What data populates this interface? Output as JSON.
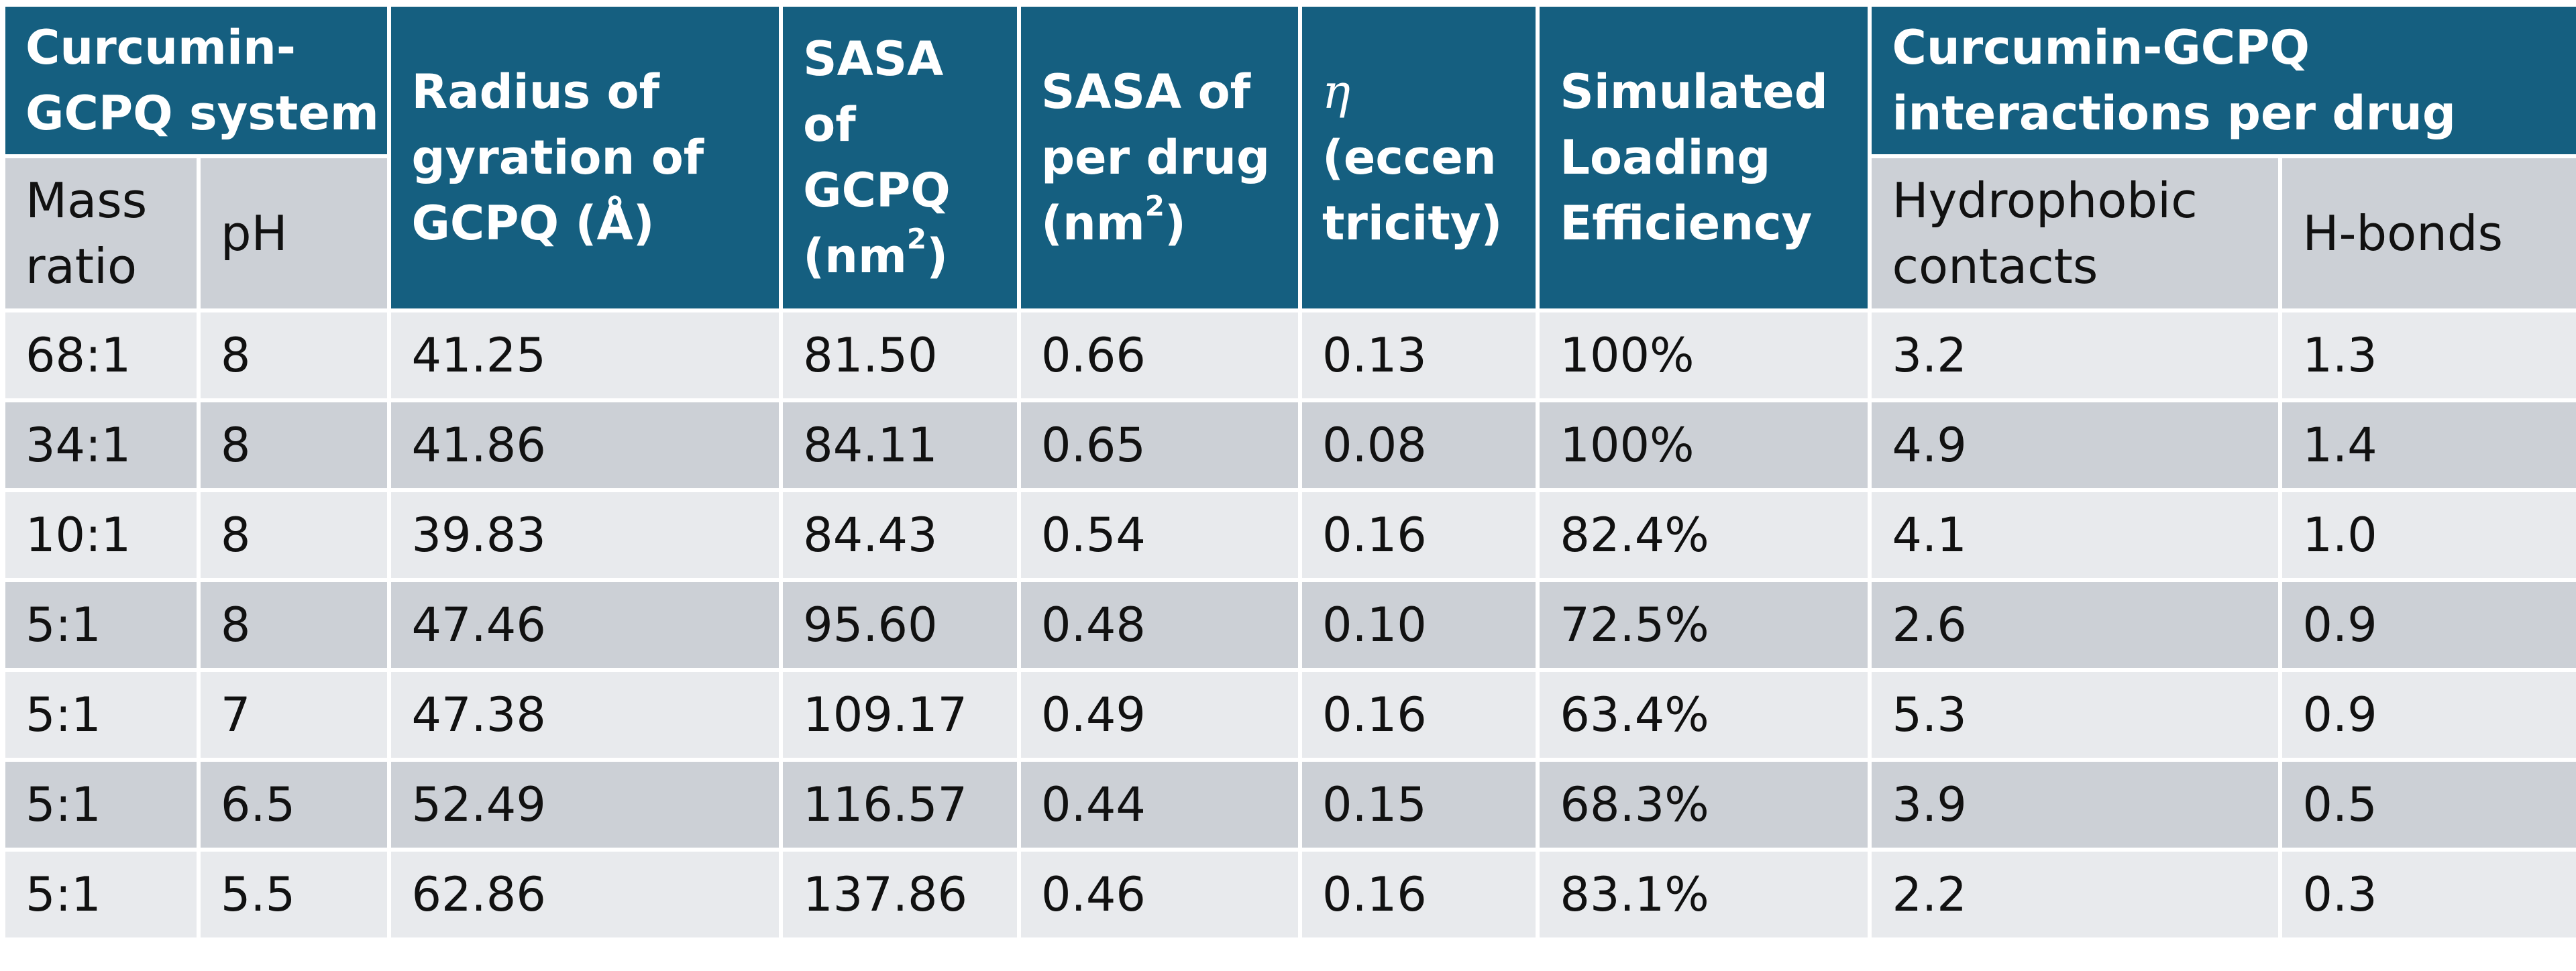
{
  "headers": {
    "system_group": "Curcumin-\nGCPQ system",
    "radius": "Radius of\ngyration of\nGCPQ (Å)",
    "sasa_gcpq": "SASA\nof\nGCPQ\n(nm",
    "sasa_drug": "SASA of\nper drug\n(nm",
    "sup2": "2",
    "close_paren": ")",
    "eta_symbol": "η",
    "eta_label": "\n(eccen\ntricity)",
    "loading": "Simulated\nLoading\nEfficiency",
    "interactions_group": "Curcumin-GCPQ\ninteractions per drug",
    "mass_ratio": "Mass\nratio",
    "ph": "pH",
    "hydrophobic": "Hydrophobic\ncontacts",
    "hbonds": "H-bonds"
  },
  "rows": [
    [
      "68:1",
      "8",
      "41.25",
      "81.50",
      "0.66",
      "0.13",
      "100%",
      "3.2",
      "1.3"
    ],
    [
      "34:1",
      "8",
      "41.86",
      "84.11",
      "0.65",
      "0.08",
      "100%",
      "4.9",
      "1.4"
    ],
    [
      "10:1",
      "8",
      "39.83",
      "84.43",
      "0.54",
      "0.16",
      "82.4%",
      "4.1",
      "1.0"
    ],
    [
      "5:1",
      "8",
      "47.46",
      "95.60",
      "0.48",
      "0.10",
      "72.5%",
      "2.6",
      "0.9"
    ],
    [
      "5:1",
      "7",
      "47.38",
      "109.17",
      "0.49",
      "0.16",
      "63.4%",
      "5.3",
      "0.9"
    ],
    [
      "5:1",
      "6.5",
      "52.49",
      "116.57",
      "0.44",
      "0.15",
      "68.3%",
      "3.9",
      "0.5"
    ],
    [
      "5:1",
      "5.5",
      "62.86",
      "137.86",
      "0.46",
      "0.16",
      "83.1%",
      "2.2",
      "0.3"
    ]
  ]
}
